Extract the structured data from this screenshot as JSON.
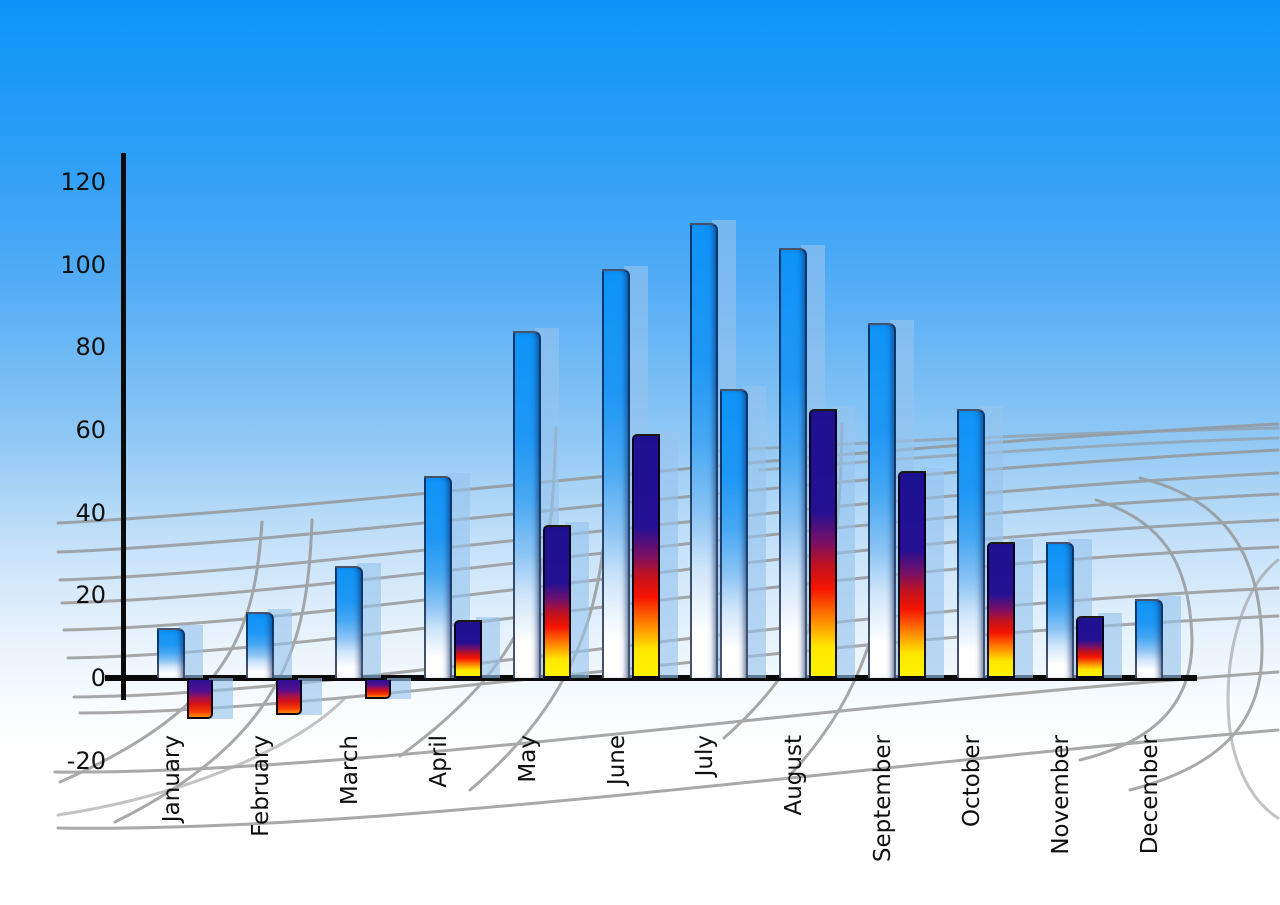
{
  "chart_data": {
    "type": "bar",
    "title": "",
    "categories": [
      "January",
      "February",
      "March",
      "April",
      "May",
      "June",
      "July",
      "August",
      "September",
      "October",
      "November",
      "December"
    ],
    "series": [
      {
        "name": "primary-blue-bars",
        "values": [
          12,
          16,
          27,
          49,
          84,
          99,
          110,
          104,
          86,
          65,
          33,
          19
        ]
      },
      {
        "name": "secondary-accent-bars",
        "values": [
          -10,
          -9,
          -5,
          14,
          37,
          59,
          70,
          65,
          50,
          33,
          15,
          null
        ]
      }
    ],
    "secondary_styles": [
      "negative",
      "negative",
      "negative",
      "rainbow",
      "rainbow",
      "rainbow",
      "blue",
      "rainbow",
      "rainbow",
      "rainbow",
      "rainbow",
      null
    ],
    "yticks": [
      120,
      100,
      80,
      60,
      40,
      20,
      0,
      -20
    ],
    "ylim": [
      -20,
      120
    ],
    "xlabel_rotation": -90,
    "legend": "none",
    "grid": "decorative curved perspective net behind bars"
  },
  "colors": {
    "sky_top": "#0a95f8",
    "sky_bottom": "#ffffff",
    "grid_line": "#949494",
    "axis_line": "#0b0b0b",
    "bar_blue_top": "#0d93f7",
    "bar_blue_bottom": "#ffffff",
    "bar_shadow": "rgba(150,195,238,0.62)",
    "rainbow_stops": [
      "#1e1191",
      "#c01220",
      "#f61300",
      "#ff8a00",
      "#ffe800"
    ],
    "label_text": "#101010"
  }
}
